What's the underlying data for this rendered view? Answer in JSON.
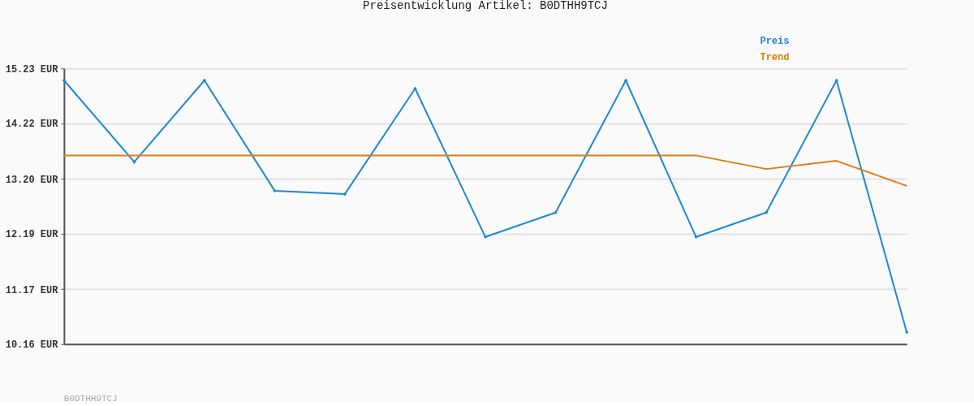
{
  "chart_data": {
    "type": "line",
    "title": "Preisentwicklung Artikel: B0DTHH9TCJ",
    "categories": [
      null,
      null,
      null,
      null,
      null,
      null,
      null,
      null,
      null,
      null,
      null,
      null,
      null
    ],
    "series": [
      {
        "name": "Preis",
        "color": "#1f88d2",
        "marker": "diamond",
        "values": [
          15.01,
          13.51,
          15.01,
          12.98,
          12.92,
          14.86,
          12.13,
          12.58,
          15.01,
          12.13,
          12.58,
          15.01,
          10.38
        ]
      },
      {
        "name": "Trend",
        "color": "#e07b10",
        "values": [
          13.63,
          13.63,
          13.63,
          13.63,
          13.63,
          13.63,
          13.63,
          13.63,
          13.63,
          13.63,
          13.38,
          13.53,
          13.07
        ]
      }
    ],
    "ylim": [
      10.16,
      15.23
    ],
    "yticks": [
      {
        "value": 10.16,
        "label": "10.16 EUR"
      },
      {
        "value": 11.17,
        "label": "11.17 EUR"
      },
      {
        "value": 12.19,
        "label": "12.19 EUR"
      },
      {
        "value": 13.2,
        "label": "13.20 EUR"
      },
      {
        "value": 14.22,
        "label": "14.22 EUR"
      },
      {
        "value": 15.23,
        "label": "15.23 EUR"
      }
    ],
    "grid": "y",
    "legend": "top right",
    "tick_labels": "y",
    "annotations": [
      "B0DTHH9TCJ"
    ]
  }
}
